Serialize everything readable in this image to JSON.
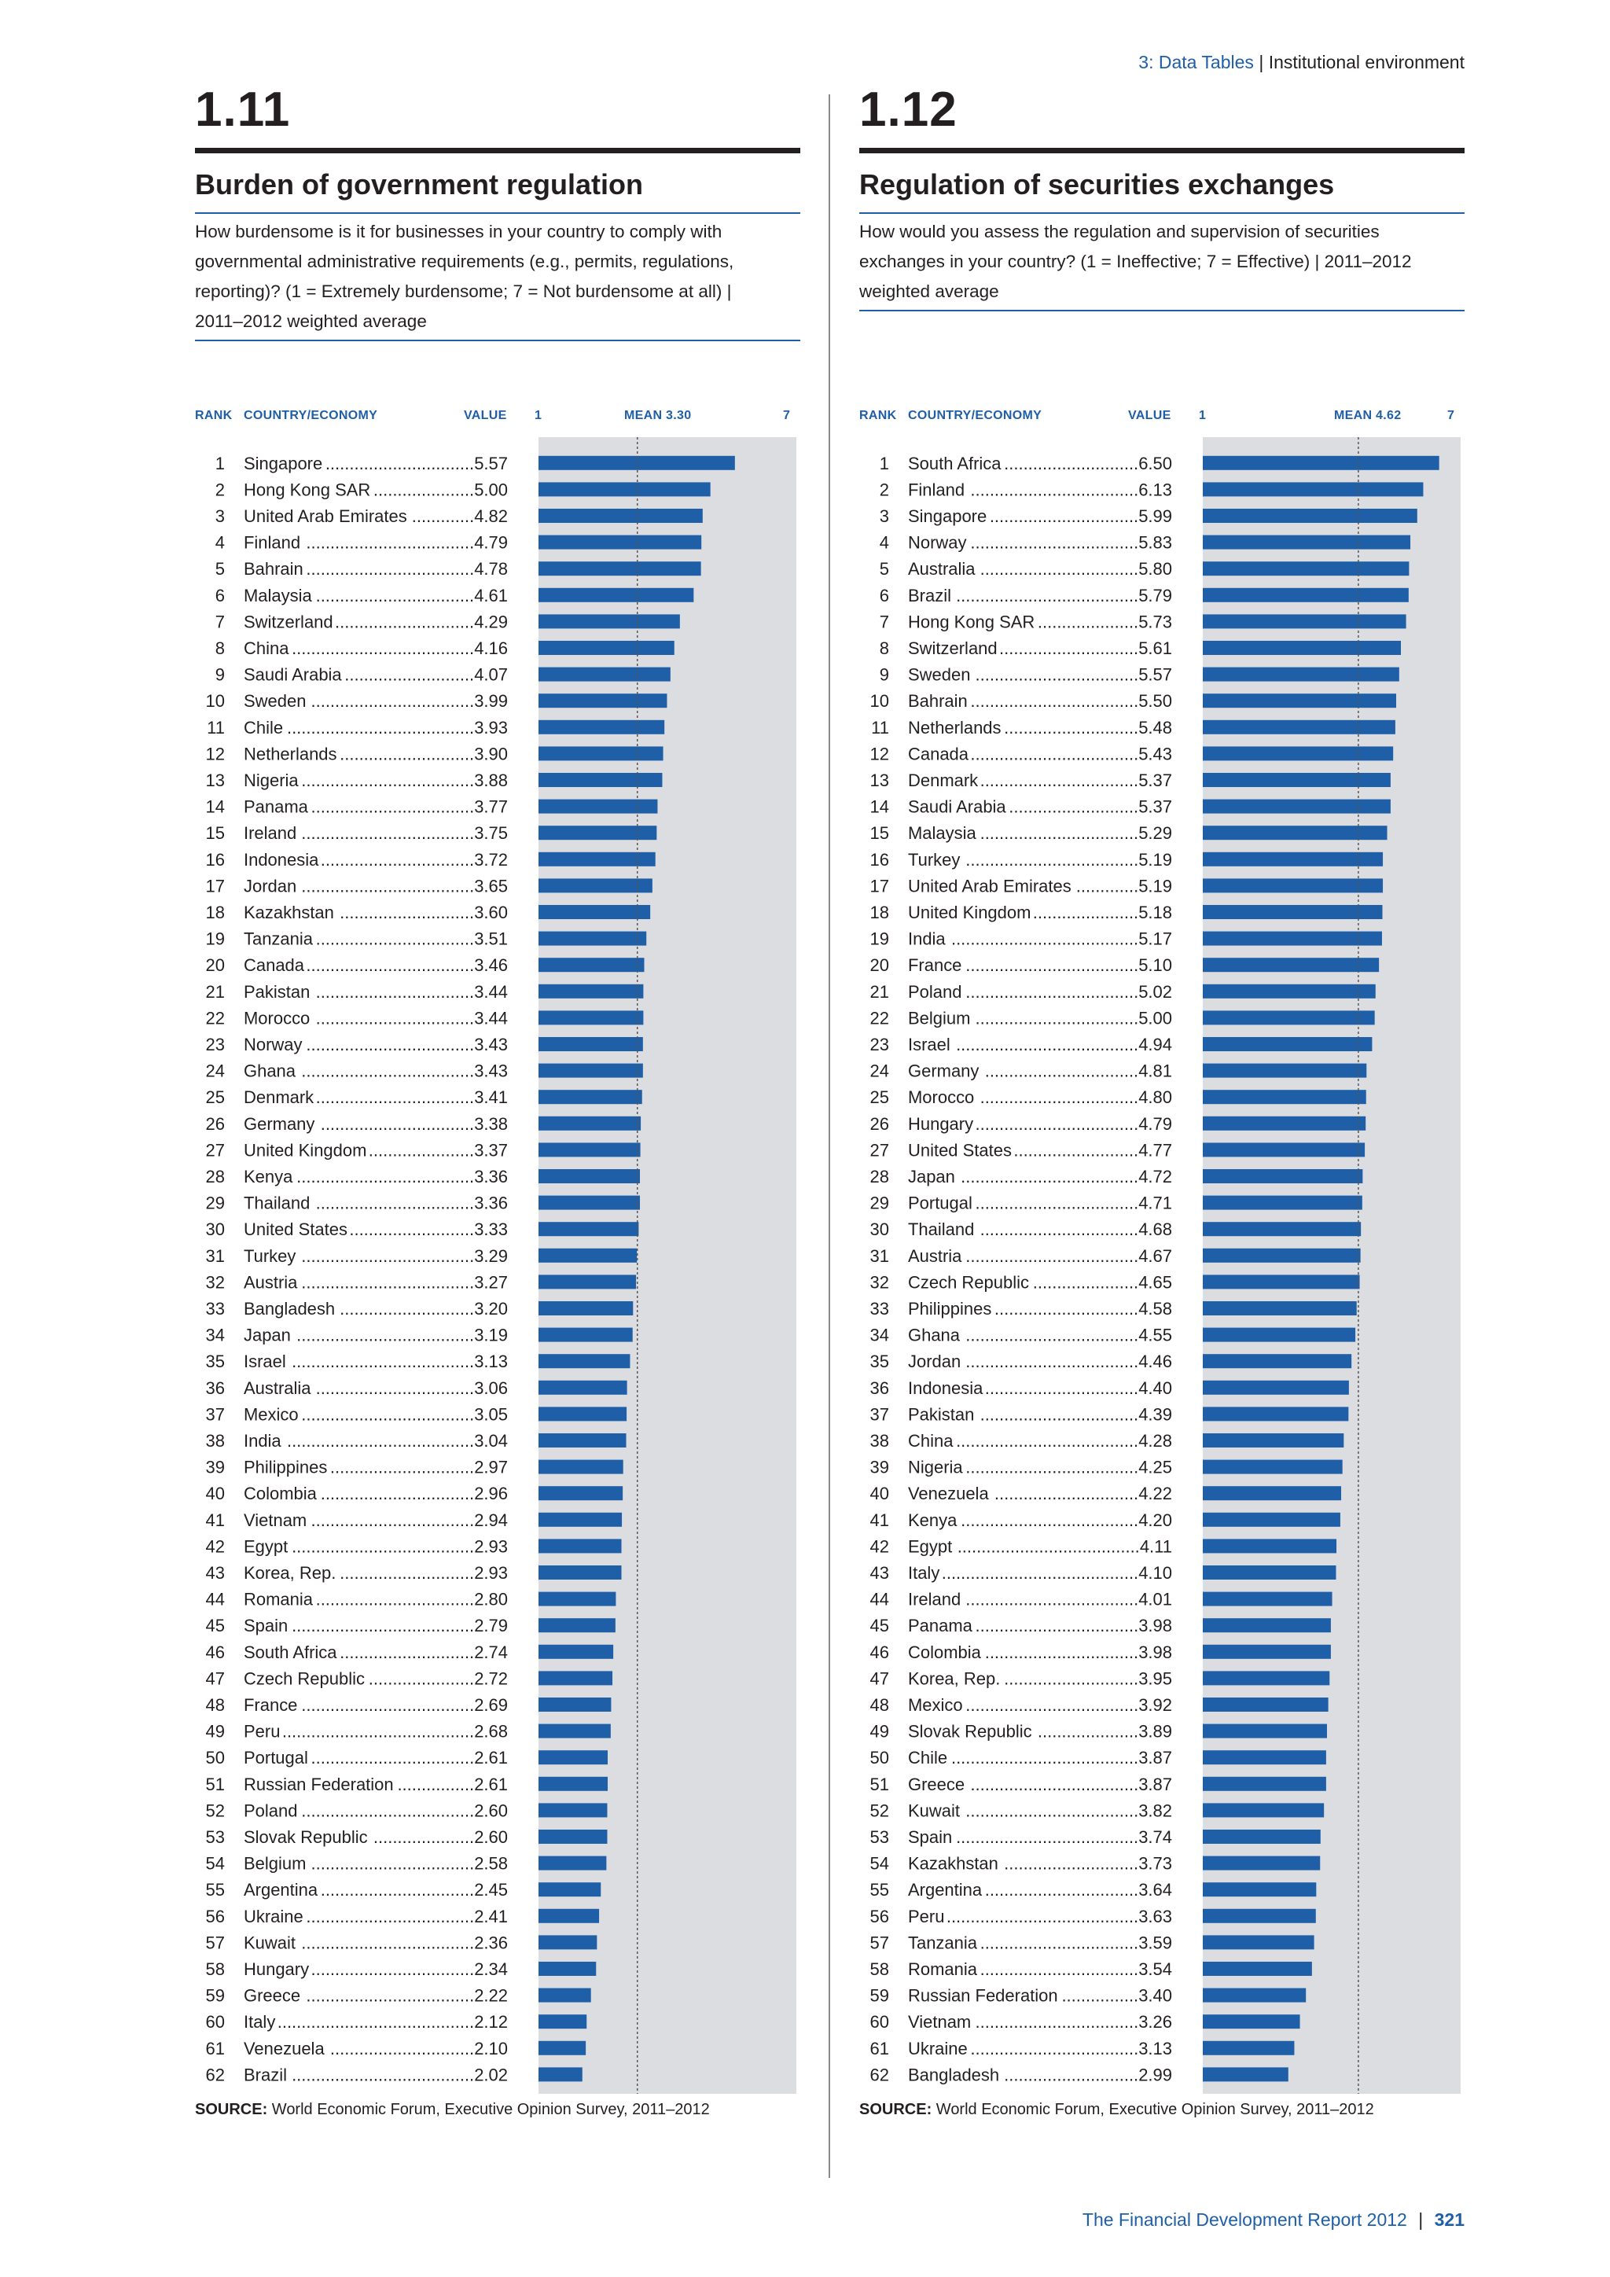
{
  "header": {
    "section": "3: Data Tables",
    "separator": "|",
    "topic": "Institutional environment"
  },
  "footer": {
    "publication": "The Financial Development Report 2012",
    "separator": "|",
    "page": "321"
  },
  "panels": [
    {
      "number": "1.11",
      "title": "Burden of government regulation",
      "description": "How burdensome is it for businesses in your country to comply with governmental administrative requirements (e.g., permits, regulations, reporting)?  (1 = Extremely burdensome; 7 = Not burdensome at all) | 2011–2012 weighted average",
      "columns": {
        "rank": "RANK",
        "country": "COUNTRY/ECONOMY",
        "value": "VALUE",
        "axis_min": "1",
        "mean": "MEAN 3.30",
        "axis_max": "7"
      },
      "source_label": "SOURCE:",
      "source_text": "World Economic Forum, Executive Opinion Survey, 2011–2012"
    },
    {
      "number": "1.12",
      "title": "Regulation of securities exchanges",
      "description": "How would you assess the regulation and supervision of securities exchanges in your country?  (1 = Ineffective; 7 = Effective) | 2011–2012 weighted average",
      "columns": {
        "rank": "RANK",
        "country": "COUNTRY/ECONOMY",
        "value": "VALUE",
        "axis_min": "1",
        "mean": "MEAN 4.62",
        "axis_max": "7"
      },
      "source_label": "SOURCE:",
      "source_text": "World Economic Forum, Executive Opinion Survey, 2011–2012"
    }
  ],
  "colors": {
    "bar": "#1f5fa8",
    "bar_background": "#dcdde0",
    "accent_text": "#1f5fa8",
    "mean_line": "#555555"
  },
  "chart_data": [
    {
      "type": "bar",
      "orientation": "horizontal",
      "xlim": [
        1,
        7
      ],
      "mean": 3.3,
      "categories": [
        "Singapore",
        "Hong Kong SAR",
        "United Arab Emirates",
        "Finland",
        "Bahrain",
        "Malaysia",
        "Switzerland",
        "China",
        "Saudi Arabia",
        "Sweden",
        "Chile",
        "Netherlands",
        "Nigeria",
        "Panama",
        "Ireland",
        "Indonesia",
        "Jordan",
        "Kazakhstan",
        "Tanzania",
        "Canada",
        "Pakistan",
        "Morocco",
        "Norway",
        "Ghana",
        "Denmark",
        "Germany",
        "United Kingdom",
        "Kenya",
        "Thailand",
        "United States",
        "Turkey",
        "Austria",
        "Bangladesh",
        "Japan",
        "Israel",
        "Australia",
        "Mexico",
        "India",
        "Philippines",
        "Colombia",
        "Vietnam",
        "Egypt",
        "Korea, Rep.",
        "Romania",
        "Spain",
        "South Africa",
        "Czech Republic",
        "France",
        "Peru",
        "Portugal",
        "Russian Federation",
        "Poland",
        "Slovak Republic",
        "Belgium",
        "Argentina",
        "Ukraine",
        "Kuwait",
        "Hungary",
        "Greece",
        "Italy",
        "Venezuela",
        "Brazil"
      ],
      "values": [
        5.57,
        5.0,
        4.82,
        4.79,
        4.78,
        4.61,
        4.29,
        4.16,
        4.07,
        3.99,
        3.93,
        3.9,
        3.88,
        3.77,
        3.75,
        3.72,
        3.65,
        3.6,
        3.51,
        3.46,
        3.44,
        3.44,
        3.43,
        3.43,
        3.41,
        3.38,
        3.37,
        3.36,
        3.36,
        3.33,
        3.29,
        3.27,
        3.2,
        3.19,
        3.13,
        3.06,
        3.05,
        3.04,
        2.97,
        2.96,
        2.94,
        2.93,
        2.93,
        2.8,
        2.79,
        2.74,
        2.72,
        2.69,
        2.68,
        2.61,
        2.61,
        2.6,
        2.6,
        2.58,
        2.45,
        2.41,
        2.36,
        2.34,
        2.22,
        2.12,
        2.1,
        2.02
      ],
      "value_labels": [
        "5.57",
        "5.00",
        "4.82",
        "4.79",
        "4.78",
        "4.61",
        "4.29",
        "4.16",
        "4.07",
        "3.99",
        "3.93",
        "3.90",
        "3.88",
        "3.77",
        "3.75",
        "3.72",
        "3.65",
        "3.60",
        "3.51",
        "3.46",
        "3.44",
        "3.44",
        "3.43",
        "3.43",
        "3.41",
        "3.38",
        "3.37",
        "3.36",
        "3.36",
        "3.33",
        "3.29",
        "3.27",
        "3.20",
        "3.19",
        "3.13",
        "3.06",
        "3.05",
        "3.04",
        "2.97",
        "2.96",
        "2.94",
        "2.93",
        "2.93",
        "2.80",
        "2.79",
        "2.74",
        "2.72",
        "2.69",
        "2.68",
        "2.61",
        "2.61",
        "2.60",
        "2.60",
        "2.58",
        "2.45",
        "2.41",
        "2.36",
        "2.34",
        "2.22",
        "2.12",
        "2.10",
        "2.02"
      ]
    },
    {
      "type": "bar",
      "orientation": "horizontal",
      "xlim": [
        1,
        7
      ],
      "mean": 4.62,
      "categories": [
        "South Africa",
        "Finland",
        "Singapore",
        "Norway",
        "Australia",
        "Brazil",
        "Hong Kong SAR",
        "Switzerland",
        "Sweden",
        "Bahrain",
        "Netherlands",
        "Canada",
        "Denmark",
        "Saudi Arabia",
        "Malaysia",
        "Turkey",
        "United Arab Emirates",
        "United Kingdom",
        "India",
        "France",
        "Poland",
        "Belgium",
        "Israel",
        "Germany",
        "Morocco",
        "Hungary",
        "United States",
        "Japan",
        "Portugal",
        "Thailand",
        "Austria",
        "Czech Republic",
        "Philippines",
        "Ghana",
        "Jordan",
        "Indonesia",
        "Pakistan",
        "China",
        "Nigeria",
        "Venezuela",
        "Kenya",
        "Egypt",
        "Italy",
        "Ireland",
        "Panama",
        "Colombia",
        "Korea, Rep.",
        "Mexico",
        "Slovak Republic",
        "Chile",
        "Greece",
        "Kuwait",
        "Spain",
        "Kazakhstan",
        "Argentina",
        "Peru",
        "Tanzania",
        "Romania",
        "Russian Federation",
        "Vietnam",
        "Ukraine",
        "Bangladesh"
      ],
      "values": [
        6.5,
        6.13,
        5.99,
        5.83,
        5.8,
        5.79,
        5.73,
        5.61,
        5.57,
        5.5,
        5.48,
        5.43,
        5.37,
        5.37,
        5.29,
        5.19,
        5.19,
        5.18,
        5.17,
        5.1,
        5.02,
        5.0,
        4.94,
        4.81,
        4.8,
        4.79,
        4.77,
        4.72,
        4.71,
        4.68,
        4.67,
        4.65,
        4.58,
        4.55,
        4.46,
        4.4,
        4.39,
        4.28,
        4.25,
        4.22,
        4.2,
        4.11,
        4.1,
        4.01,
        3.98,
        3.98,
        3.95,
        3.92,
        3.89,
        3.87,
        3.87,
        3.82,
        3.74,
        3.73,
        3.64,
        3.63,
        3.59,
        3.54,
        3.4,
        3.26,
        3.13,
        2.99
      ],
      "value_labels": [
        "6.50",
        "6.13",
        "5.99",
        "5.83",
        "5.80",
        "5.79",
        "5.73",
        "5.61",
        "5.57",
        "5.50",
        "5.48",
        "5.43",
        "5.37",
        "5.37",
        "5.29",
        "5.19",
        "5.19",
        "5.18",
        "5.17",
        "5.10",
        "5.02",
        "5.00",
        "4.94",
        "4.81",
        "4.80",
        "4.79",
        "4.77",
        "4.72",
        "4.71",
        "4.68",
        "4.67",
        "4.65",
        "4.58",
        "4.55",
        "4.46",
        "4.40",
        "4.39",
        "4.28",
        "4.25",
        "4.22",
        "4.20",
        "4.11",
        "4.10",
        "4.01",
        "3.98",
        "3.98",
        "3.95",
        "3.92",
        "3.89",
        "3.87",
        "3.87",
        "3.82",
        "3.74",
        "3.73",
        "3.64",
        "3.63",
        "3.59",
        "3.54",
        "3.40",
        "3.26",
        "3.13",
        "2.99"
      ]
    }
  ]
}
